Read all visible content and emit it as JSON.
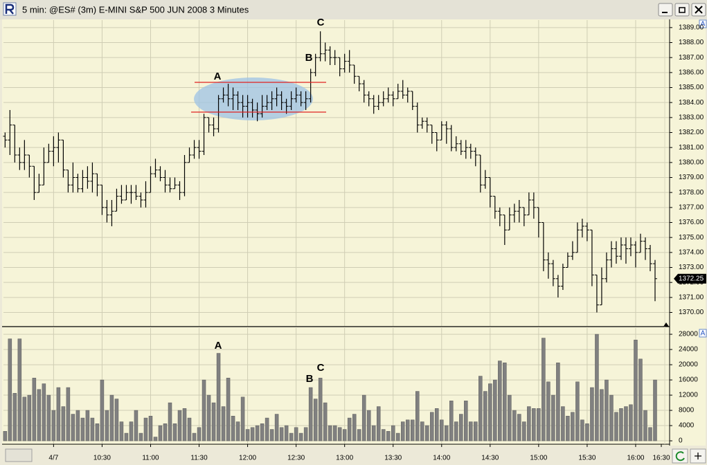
{
  "window_title": "5 min: @ES# (3m) E-MINI S&P 500 JUN 2008 3 Minutes",
  "panel_buttons": [
    "A",
    "A"
  ],
  "chart_data": {
    "type": "ohlc",
    "x": [
      "09:30",
      "09:33",
      "09:36",
      "09:39",
      "09:42",
      "09:45",
      "09:48",
      "09:51",
      "09:54",
      "09:57",
      "10:00",
      "10:03",
      "10:06",
      "10:09",
      "10:12",
      "10:15",
      "10:18",
      "10:21",
      "10:24",
      "10:27",
      "10:30",
      "10:33",
      "10:36",
      "10:39",
      "10:42",
      "10:45",
      "10:48",
      "10:51",
      "10:54",
      "10:57",
      "11:00",
      "11:03",
      "11:06",
      "11:09",
      "11:12",
      "11:15",
      "11:18",
      "11:21",
      "11:24",
      "11:27",
      "11:30",
      "11:33",
      "11:36",
      "11:39",
      "11:42",
      "11:45",
      "11:48",
      "11:51",
      "11:54",
      "11:57",
      "12:00",
      "12:03",
      "12:06",
      "12:09",
      "12:12",
      "12:15",
      "12:18",
      "12:21",
      "12:24",
      "12:27",
      "12:30",
      "12:33",
      "12:36",
      "12:39",
      "12:42",
      "12:45",
      "12:48",
      "12:51",
      "12:54",
      "12:57",
      "13:00",
      "13:03",
      "13:06",
      "13:09",
      "13:12",
      "13:15",
      "13:18",
      "13:21",
      "13:24",
      "13:27",
      "13:30",
      "13:33",
      "13:36",
      "13:39",
      "13:42",
      "13:45",
      "13:48",
      "13:51",
      "13:54",
      "13:57",
      "14:00",
      "14:03",
      "14:06",
      "14:09",
      "14:12",
      "14:15",
      "14:18",
      "14:21",
      "14:24",
      "14:27",
      "14:30",
      "14:33",
      "14:36",
      "14:39",
      "14:42",
      "14:45",
      "14:48",
      "14:51",
      "14:54",
      "14:57",
      "15:00",
      "15:03",
      "15:06",
      "15:09",
      "15:12",
      "15:15",
      "15:18",
      "15:21",
      "15:24",
      "15:27",
      "15:30",
      "15:33",
      "15:36",
      "15:39",
      "15:42",
      "15:45",
      "15:48",
      "15:51",
      "15:54",
      "15:57",
      "16:00",
      "16:03",
      "16:06",
      "16:09",
      "16:12"
    ],
    "open": [
      1381.75,
      1381.5,
      1382.5,
      1380.5,
      1380,
      1380.5,
      1379.75,
      1378,
      1378.5,
      1380,
      1380.75,
      1381,
      1381.5,
      1379.5,
      1378.5,
      1379,
      1378.25,
      1379,
      1378.75,
      1379.25,
      1378.5,
      1377,
      1376.5,
      1376.75,
      1377.75,
      1377.5,
      1378,
      1378,
      1377.75,
      1377.5,
      1378,
      1379.25,
      1379.5,
      1379,
      1378.5,
      1378.25,
      1378.5,
      1378,
      1380,
      1380.5,
      1381,
      1380.75,
      1383,
      1382.5,
      1382.25,
      1384.25,
      1384.5,
      1384.25,
      1384.5,
      1384,
      1383.75,
      1384,
      1383.5,
      1383.25,
      1383.75,
      1384,
      1384.25,
      1384.5,
      1384,
      1383.75,
      1384.25,
      1384.5,
      1384,
      1384.25,
      1386,
      1387,
      1387.25,
      1387.5,
      1387,
      1387,
      1386.25,
      1386.75,
      1386.5,
      1385.75,
      1385.25,
      1384.5,
      1384.25,
      1383.75,
      1384,
      1384.25,
      1384.5,
      1384.25,
      1384.75,
      1384.5,
      1384.75,
      1383.75,
      1382.5,
      1382.75,
      1382.5,
      1382,
      1381.5,
      1382.5,
      1382.25,
      1381,
      1381.25,
      1380.75,
      1381,
      1380.75,
      1380.5,
      1378.5,
      1379,
      1377.75,
      1376.75,
      1376.5,
      1375.5,
      1376.5,
      1376.75,
      1377,
      1376.5,
      1377.5,
      1377,
      1376,
      1373.5,
      1373.25,
      1372.25,
      1371.75,
      1373,
      1373.75,
      1374,
      1375.5,
      1375.75,
      1375.5,
      1372.5,
      1370.5,
      1372.25,
      1373.5,
      1374.25,
      1373.75,
      1374.5,
      1374.25,
      1374.5,
      1374,
      1374.75,
      1374.25,
      1373.25
    ],
    "high": [
      1382,
      1383.5,
      1382.5,
      1381,
      1381.5,
      1380.5,
      1379.75,
      1379.25,
      1381,
      1381.25,
      1381.75,
      1382,
      1381.5,
      1379.5,
      1380,
      1379.25,
      1379.5,
      1379.75,
      1380,
      1379.25,
      1378.5,
      1377.5,
      1377.5,
      1378.25,
      1378.5,
      1378.5,
      1378.5,
      1378.5,
      1378,
      1378.75,
      1379.75,
      1380.25,
      1379.75,
      1379.5,
      1379,
      1379,
      1378.75,
      1380.5,
      1381,
      1381.5,
      1381.5,
      1383.25,
      1383,
      1383,
      1384.5,
      1385,
      1385.25,
      1385,
      1384.75,
      1384.5,
      1384.5,
      1384.25,
      1384,
      1384.5,
      1384.5,
      1384.75,
      1385,
      1384.75,
      1384.25,
      1384.75,
      1385,
      1384.75,
      1384.75,
      1386.25,
      1387.25,
      1388.75,
      1388,
      1387.75,
      1387.5,
      1387,
      1387.25,
      1387.5,
      1386.5,
      1385.75,
      1385.5,
      1384.75,
      1384.5,
      1384.5,
      1384.75,
      1385,
      1384.75,
      1385.25,
      1385.5,
      1385,
      1384.75,
      1384,
      1383,
      1383,
      1382.5,
      1382,
      1382.75,
      1382.75,
      1382.5,
      1381.75,
      1381.5,
      1381.5,
      1381.25,
      1381,
      1380.5,
      1379.5,
      1379,
      1377.75,
      1377,
      1376.5,
      1377,
      1377.25,
      1377.5,
      1377,
      1378,
      1378,
      1377,
      1376,
      1374,
      1373.5,
      1372.5,
      1373.25,
      1374,
      1374.75,
      1376,
      1376.25,
      1376,
      1375.5,
      1372.5,
      1373,
      1374,
      1374.75,
      1374.75,
      1375,
      1375,
      1375,
      1374.75,
      1375.25,
      1375,
      1374.5,
      1373.5
    ],
    "low": [
      1381,
      1380.5,
      1380,
      1379.5,
      1379.5,
      1379,
      1377.5,
      1378,
      1378.5,
      1380,
      1379.75,
      1380,
      1379,
      1378,
      1378,
      1378,
      1378,
      1378.25,
      1378,
      1377.75,
      1376.5,
      1376,
      1375.75,
      1376.75,
      1377.25,
      1377.5,
      1377.25,
      1377.5,
      1377,
      1377,
      1378,
      1379,
      1378.75,
      1378,
      1378,
      1378.25,
      1377.5,
      1377.75,
      1380,
      1380.25,
      1380.25,
      1380.5,
      1382,
      1381.75,
      1382,
      1384,
      1383.75,
      1383.5,
      1383.5,
      1383,
      1383,
      1383,
      1382.75,
      1383,
      1383.5,
      1383.5,
      1383.75,
      1383.5,
      1383.25,
      1383.5,
      1384,
      1383.75,
      1383.5,
      1384,
      1385.75,
      1386.75,
      1386.75,
      1386.5,
      1386.5,
      1385.75,
      1386,
      1386,
      1385.25,
      1384.75,
      1384,
      1383.75,
      1383.25,
      1383.5,
      1383.75,
      1384,
      1383.75,
      1384.25,
      1384.25,
      1384,
      1383.5,
      1382,
      1382.25,
      1382,
      1381.25,
      1380.75,
      1381.5,
      1381.25,
      1380.75,
      1380.75,
      1380.5,
      1380.25,
      1380.25,
      1379.75,
      1378,
      1378.25,
      1377,
      1376.25,
      1375.75,
      1374.5,
      1375.5,
      1376,
      1376,
      1375.75,
      1376.5,
      1376.25,
      1375,
      1372.75,
      1372.25,
      1371.75,
      1371,
      1371.5,
      1373,
      1373.5,
      1374,
      1375,
      1374.75,
      1371.75,
      1370,
      1370.5,
      1372,
      1373,
      1373.25,
      1373.5,
      1373.25,
      1373.75,
      1373,
      1374,
      1373.5,
      1372.75,
      1370.75
    ],
    "close": [
      1381.5,
      1382.5,
      1380.5,
      1380,
      1380.5,
      1379.75,
      1378,
      1378.5,
      1380,
      1380.75,
      1381,
      1381.5,
      1379.5,
      1378.5,
      1379,
      1378.25,
      1379,
      1378.75,
      1379.25,
      1378.5,
      1377,
      1376.5,
      1376.75,
      1377.75,
      1377.5,
      1378,
      1378,
      1377.75,
      1377.5,
      1378,
      1379.25,
      1379.5,
      1379,
      1378.5,
      1378.25,
      1378.5,
      1378,
      1380,
      1380.5,
      1381,
      1380.75,
      1383,
      1382.5,
      1382.25,
      1384.25,
      1384.5,
      1384.25,
      1384.5,
      1384,
      1383.75,
      1384,
      1383.5,
      1383.25,
      1383.75,
      1384,
      1384.25,
      1384.5,
      1384,
      1383.75,
      1384.25,
      1384.5,
      1384,
      1384.25,
      1386,
      1387,
      1387.25,
      1387.5,
      1387,
      1387,
      1386.25,
      1386.75,
      1386.5,
      1385.75,
      1385.25,
      1384.5,
      1384.25,
      1383.75,
      1384,
      1384.25,
      1384.5,
      1384.25,
      1384.75,
      1384.5,
      1384.75,
      1383.75,
      1382.5,
      1382.75,
      1382.5,
      1382,
      1381.5,
      1382.5,
      1382.25,
      1381,
      1381.25,
      1380.75,
      1381,
      1380.75,
      1380.5,
      1378.5,
      1379,
      1377.75,
      1376.75,
      1376.5,
      1375.5,
      1376.5,
      1376.75,
      1377,
      1376.5,
      1377.5,
      1377,
      1376,
      1373.5,
      1373.25,
      1372.25,
      1371.75,
      1373,
      1373.75,
      1374,
      1375.5,
      1375.75,
      1375.5,
      1372.5,
      1370.5,
      1372.25,
      1373.5,
      1374.25,
      1373.75,
      1374.5,
      1374.25,
      1374.5,
      1374,
      1374.75,
      1374.25,
      1373.25,
      1372.25
    ],
    "color": "#000000",
    "last_price": 1372.25,
    "xlim": [
      "09:29",
      "16:21"
    ],
    "xticks": [
      {
        "value": "10:00",
        "label": "4/7"
      },
      "10:30",
      "11:00",
      "11:30",
      "12:00",
      "12:30",
      "13:00",
      "13:30",
      "14:00",
      "14:30",
      "15:00",
      "15:30",
      "16:00",
      "16:30"
    ],
    "ylim": [
      1369.1,
      1389.5
    ],
    "yticks": [
      {
        "value": 1370,
        "label": "1370.00"
      },
      {
        "value": 1371,
        "label": "1371.00"
      },
      {
        "value": 1372,
        "label": "1372.00"
      },
      {
        "value": 1373,
        "label": "1373.00"
      },
      {
        "value": 1374,
        "label": "1374.00"
      },
      {
        "value": 1375,
        "label": "1375.00"
      },
      {
        "value": 1376,
        "label": "1376.00"
      },
      {
        "value": 1377,
        "label": "1377.00"
      },
      {
        "value": 1378,
        "label": "1378.00"
      },
      {
        "value": 1379,
        "label": "1379.00"
      },
      {
        "value": 1380,
        "label": "1380.00"
      },
      {
        "value": 1381,
        "label": "1381.00"
      },
      {
        "value": 1382,
        "label": "1382.00"
      },
      {
        "value": 1383,
        "label": "1383.00"
      },
      {
        "value": 1384,
        "label": "1384.00"
      },
      {
        "value": 1385,
        "label": "1385.00"
      },
      {
        "value": 1386,
        "label": "1386.00"
      },
      {
        "value": 1387,
        "label": "1387.00"
      },
      {
        "value": 1388,
        "label": "1388.00"
      },
      {
        "value": 1389,
        "label": "1389.00"
      }
    ],
    "grid": true,
    "annotations": [
      "A",
      "B",
      "C"
    ],
    "volume": {
      "values": [
        2500,
        26800,
        12500,
        26800,
        11500,
        12000,
        16500,
        13500,
        15000,
        12000,
        8000,
        14000,
        9000,
        14000,
        7000,
        8000,
        6000,
        8000,
        6000,
        4500,
        16000,
        8000,
        12000,
        11000,
        5000,
        2000,
        5000,
        8000,
        2000,
        6000,
        6500,
        1000,
        4000,
        4500,
        10000,
        4500,
        8000,
        8500,
        6000,
        2000,
        3500,
        16000,
        12000,
        10000,
        23000,
        9000,
        16500,
        6500,
        5000,
        11500,
        3000,
        3500,
        4000,
        4500,
        6000,
        3000,
        7000,
        3500,
        4000,
        2000,
        3500,
        2000,
        3500,
        14000,
        11000,
        16500,
        10000,
        4000,
        4000,
        3500,
        3000,
        6000,
        7000,
        3000,
        12000,
        8000,
        4000,
        9000,
        3000,
        2500,
        4000,
        2000,
        5000,
        5500,
        5500,
        13000,
        5000,
        4000,
        7500,
        8500,
        5500,
        4000,
        10500,
        5000,
        7000,
        10500,
        5000,
        5000,
        17000,
        13000,
        15000,
        16000,
        21000,
        20500,
        12000,
        8000,
        7000,
        5000,
        9000,
        8500,
        8500,
        27000,
        15500,
        12000,
        20500,
        9000,
        6500,
        7500,
        15500,
        5500,
        4500,
        14000,
        28000,
        13500,
        16000,
        12000,
        7500,
        8500,
        9000,
        9500,
        26500,
        21500,
        8000,
        3500,
        16000
      ],
      "color": "#808080",
      "ylim": [
        -900,
        29650
      ],
      "yticks": [
        0,
        4000,
        8000,
        12000,
        16000,
        20000,
        24000,
        28000
      ],
      "annotations": [
        "A",
        "B",
        "C"
      ]
    }
  }
}
